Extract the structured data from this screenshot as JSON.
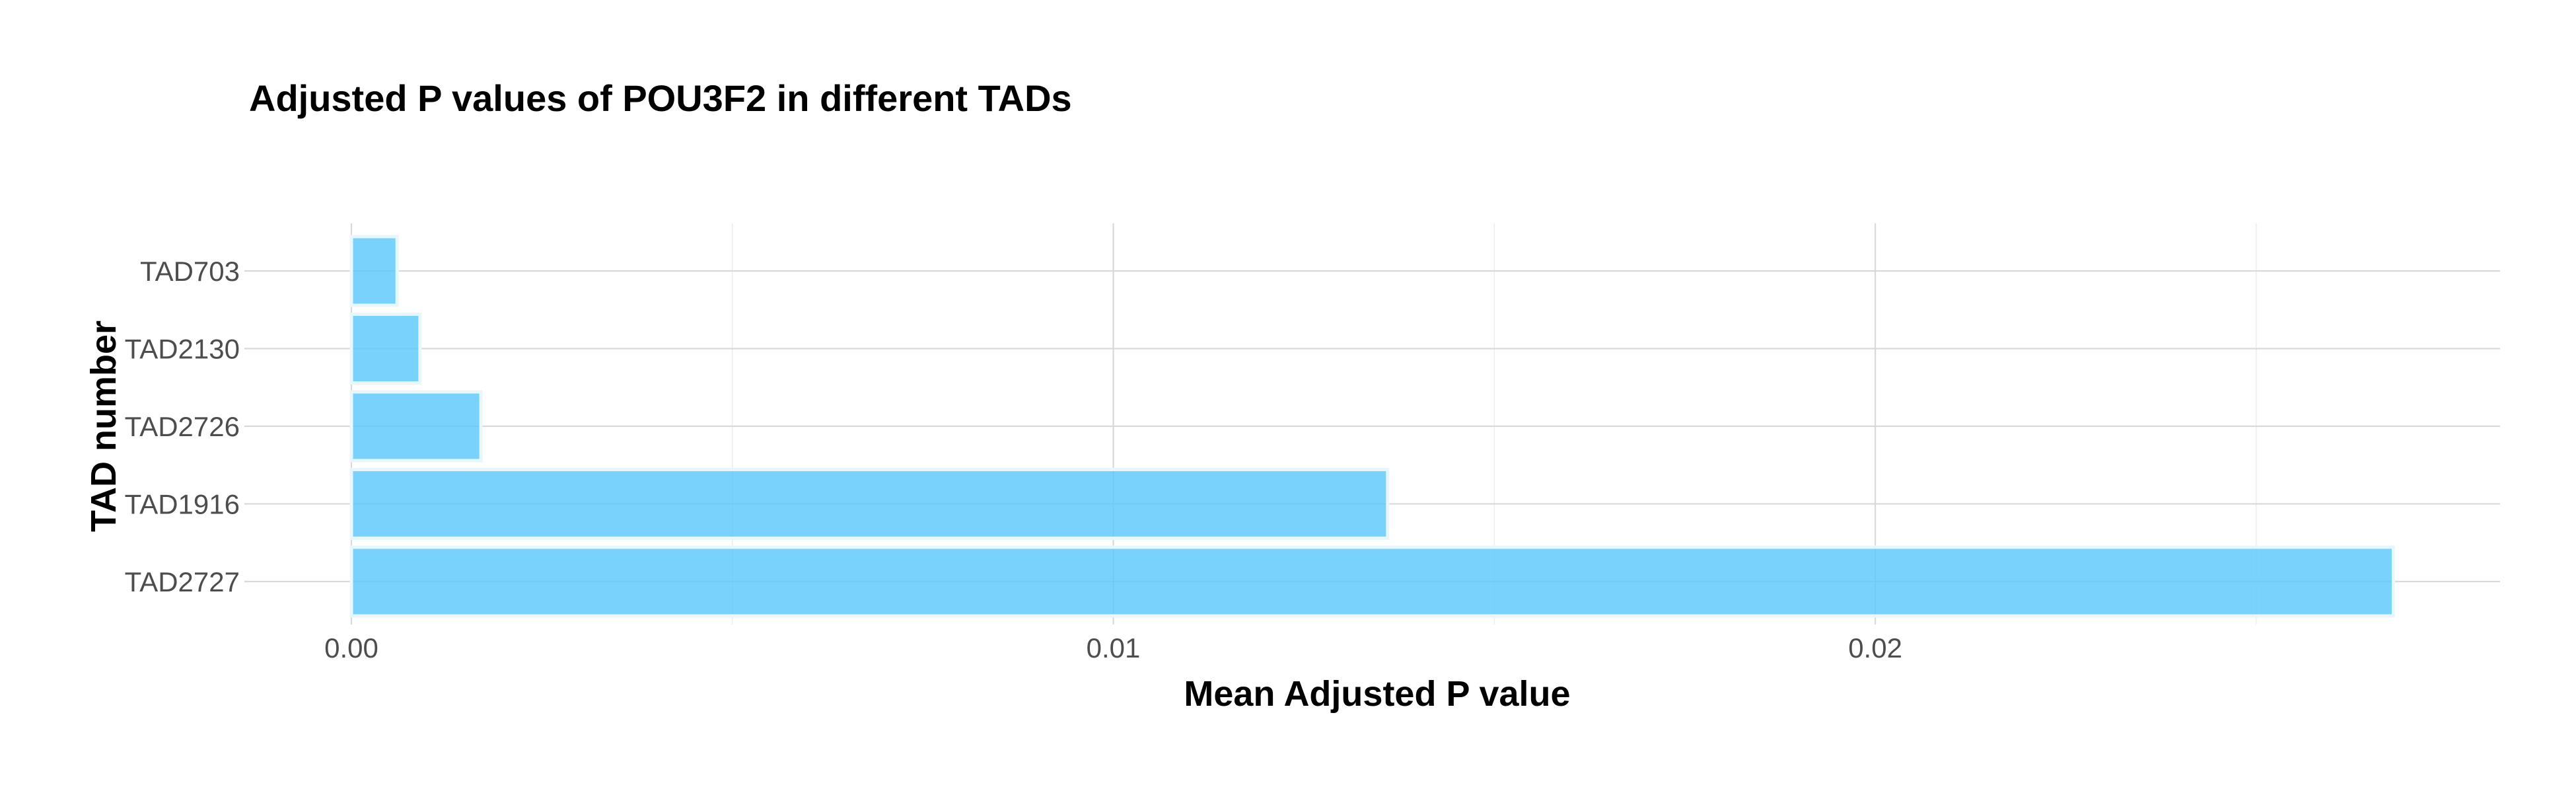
{
  "chart_data": {
    "type": "bar",
    "orientation": "horizontal",
    "title": "Adjusted P values of POU3F2 in different TADs",
    "xlabel": "Mean Adjusted P value",
    "ylabel": "TAD number",
    "categories": [
      "TAD703",
      "TAD2130",
      "TAD2726",
      "TAD1916",
      "TAD2727"
    ],
    "values": [
      0.0006,
      0.0009,
      0.0017,
      0.0136,
      0.0268
    ],
    "xlim": [
      0,
      0.0282
    ],
    "xticks": [
      0.0,
      0.01,
      0.02
    ],
    "xtick_labels": [
      "0.00",
      "0.01",
      "0.02"
    ],
    "grid": true,
    "bar_color": "#5ac8fa",
    "bar_edge_color": "#e8f6fe"
  }
}
